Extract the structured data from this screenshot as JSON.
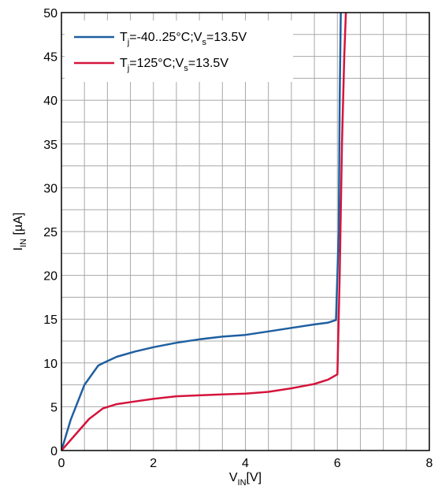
{
  "chart_data": {
    "type": "line",
    "xlabel": {
      "main": "V",
      "sub": "IN",
      "unit": "[V]"
    },
    "ylabel": {
      "main": "I",
      "sub": "IN",
      "unit": " [µA]"
    },
    "xlim": [
      0,
      8
    ],
    "ylim": [
      0,
      50
    ],
    "xticks": [
      "0",
      "2",
      "4",
      "6",
      "8"
    ],
    "yticks": [
      "0",
      "5",
      "10",
      "15",
      "20",
      "25",
      "30",
      "35",
      "40",
      "45",
      "50"
    ],
    "grid": true,
    "legend_position": "top-left",
    "series": [
      {
        "name": {
          "t": "T",
          "tsub": "j",
          "mid": "=-40..25°C;V",
          "vsub": "s",
          "end": "=13.5V"
        },
        "color": "#1f5fa0",
        "x": [
          0,
          0.2,
          0.5,
          0.8,
          0.95,
          1.2,
          1.6,
          2.0,
          2.5,
          3.0,
          3.5,
          4.0,
          4.5,
          5.0,
          5.5,
          5.8,
          5.97,
          6.03,
          6.05,
          6.08
        ],
        "y": [
          0,
          3.5,
          7.5,
          9.7,
          10.1,
          10.7,
          11.3,
          11.8,
          12.3,
          12.7,
          13.0,
          13.2,
          13.6,
          14.0,
          14.4,
          14.6,
          14.9,
          25,
          40,
          52
        ]
      },
      {
        "name": {
          "t": "T",
          "tsub": "j",
          "mid": "=125°C;V",
          "vsub": "s",
          "end": "=13.5V"
        },
        "color": "#d4143c",
        "x": [
          0,
          0.3,
          0.6,
          0.9,
          1.2,
          1.6,
          2.0,
          2.5,
          3.0,
          3.5,
          4.0,
          4.5,
          5.0,
          5.5,
          5.8,
          6.0,
          6.05,
          6.1,
          6.15,
          6.2
        ],
        "y": [
          0,
          1.8,
          3.6,
          4.8,
          5.3,
          5.6,
          5.9,
          6.2,
          6.3,
          6.4,
          6.5,
          6.7,
          7.1,
          7.6,
          8.1,
          8.7,
          20,
          35,
          45,
          52
        ]
      }
    ]
  }
}
